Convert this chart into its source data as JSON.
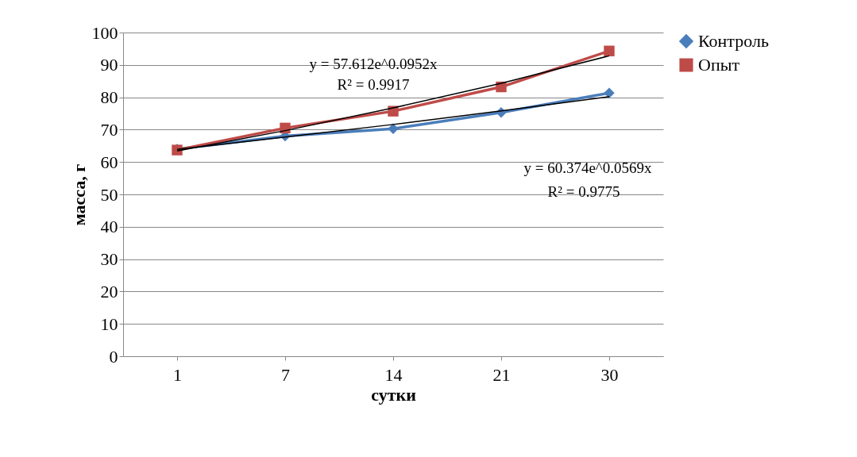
{
  "chart_data": {
    "type": "line",
    "xlabel": "сутки",
    "ylabel": "масса, г",
    "categories": [
      "1",
      "7",
      "14",
      "21",
      "30"
    ],
    "series": [
      {
        "name": "Контроль",
        "color": "#4a7ebb",
        "marker": "diamond",
        "values": [
          64.0,
          68.0,
          70.3,
          75.3,
          81.3
        ]
      },
      {
        "name": "Опыт",
        "color": "#be4b48",
        "marker": "square",
        "values": [
          63.7,
          70.5,
          75.7,
          83.2,
          94.3
        ]
      },
      {
        "type": "line",
        "color": "#000000",
        "marker": "none",
        "values": [
          63.4,
          69.7,
          76.7,
          84.3,
          92.8
        ]
      },
      {
        "type": "line",
        "color": "#000000",
        "marker": "none",
        "values": [
          63.9,
          67.7,
          71.6,
          75.8,
          80.2
        ]
      }
    ],
    "annotations": [
      "y = 57.612e^0.0952x",
      "R² = 0.9917",
      "y = 60.374e^0.0569x",
      "R² = 0.9775"
    ],
    "ylim": [
      0,
      100
    ],
    "yticks": [
      0,
      10,
      20,
      30,
      40,
      50,
      60,
      70,
      80,
      90,
      100
    ],
    "grid": "y",
    "legend": "right"
  }
}
